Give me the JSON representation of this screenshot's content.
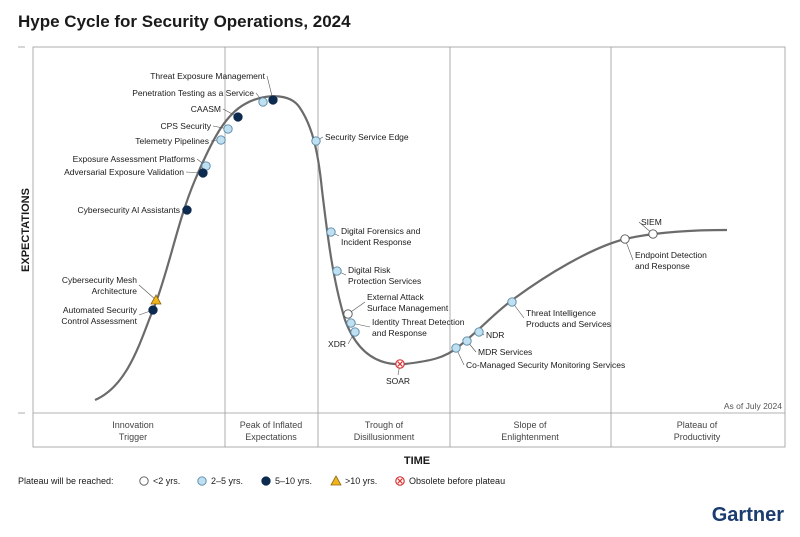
{
  "title": "Hype Cycle for Security Operations, 2024",
  "axes": {
    "y_label": "EXPECTATIONS",
    "x_label": "TIME"
  },
  "as_of": "As of July 2024",
  "phases": [
    {
      "line1": "Innovation",
      "line2": "Trigger"
    },
    {
      "line1": "Peak of Inflated",
      "line2": "Expectations"
    },
    {
      "line1": "Trough of",
      "line2": "Disillusionment"
    },
    {
      "line1": "Slope of",
      "line2": "Enlightenment"
    },
    {
      "line1": "Plateau of",
      "line2": "Productivity"
    }
  ],
  "legend": {
    "label": "Plateau will be reached:",
    "items": [
      {
        "key": "lt2",
        "text": "<2 yrs."
      },
      {
        "key": "2to5",
        "text": "2–5 yrs."
      },
      {
        "key": "5to10",
        "text": "5–10 yrs."
      },
      {
        "key": "gt10",
        "text": ">10 yrs."
      },
      {
        "key": "obsolete",
        "text": "Obsolete before plateau"
      }
    ]
  },
  "colors": {
    "lt2": "#ffffff",
    "2to5": "#bfe0f0",
    "5to10": "#0d2a4f",
    "gt10": "#f2b41c",
    "obsolete": "#d9383a",
    "curve": "#6b6b6b",
    "grid": "#9a9a9a"
  },
  "technologies": [
    {
      "name": "Threat Exposure Management",
      "lines": [
        "Threat Exposure Management"
      ],
      "category": "5to10"
    },
    {
      "name": "Penetration Testing as a Service",
      "lines": [
        "Penetration Testing as a Service"
      ],
      "category": "2to5"
    },
    {
      "name": "CAASM",
      "lines": [
        "CAASM"
      ],
      "category": "5to10"
    },
    {
      "name": "CPS Security",
      "lines": [
        "CPS Security"
      ],
      "category": "2to5"
    },
    {
      "name": "Telemetry Pipelines",
      "lines": [
        "Telemetry Pipelines"
      ],
      "category": "2to5"
    },
    {
      "name": "Exposure Assessment Platforms",
      "lines": [
        "Exposure Assessment Platforms"
      ],
      "category": "2to5"
    },
    {
      "name": "Adversarial Exposure Validation",
      "lines": [
        "Adversarial Exposure Validation"
      ],
      "category": "5to10"
    },
    {
      "name": "Cybersecurity AI Assistants",
      "lines": [
        "Cybersecurity AI Assistants"
      ],
      "category": "5to10"
    },
    {
      "name": "Cybersecurity Mesh Architecture",
      "lines": [
        "Cybersecurity Mesh",
        "Architecture"
      ],
      "category": "gt10"
    },
    {
      "name": "Automated Security Control Assessment",
      "lines": [
        "Automated Security",
        "Control Assessment"
      ],
      "category": "5to10"
    },
    {
      "name": "Security Service Edge",
      "lines": [
        "Security Service Edge"
      ],
      "category": "2to5"
    },
    {
      "name": "Digital Forensics and Incident Response",
      "lines": [
        "Digital Forensics and",
        "Incident Response"
      ],
      "category": "2to5"
    },
    {
      "name": "Digital Risk Protection Services",
      "lines": [
        "Digital Risk",
        "Protection Services"
      ],
      "category": "2to5"
    },
    {
      "name": "External Attack Surface Management",
      "lines": [
        "External Attack",
        "Surface Management"
      ],
      "category": "lt2"
    },
    {
      "name": "Identity Threat Detection and Response",
      "lines": [
        "Identity Threat Detection",
        "and Response"
      ],
      "category": "2to5"
    },
    {
      "name": "XDR",
      "lines": [
        "XDR"
      ],
      "category": "2to5"
    },
    {
      "name": "SOAR",
      "lines": [
        "SOAR"
      ],
      "category": "obsolete"
    },
    {
      "name": "Co-Managed Security Monitoring Services",
      "lines": [
        "Co-Managed Security Monitoring Services"
      ],
      "category": "2to5"
    },
    {
      "name": "MDR Services",
      "lines": [
        "MDR Services"
      ],
      "category": "2to5"
    },
    {
      "name": "NDR",
      "lines": [
        "NDR"
      ],
      "category": "2to5"
    },
    {
      "name": "Threat Intelligence Products and Services",
      "lines": [
        "Threat Intelligence",
        "Products and Services"
      ],
      "category": "2to5"
    },
    {
      "name": "Endpoint Detection and Response",
      "lines": [
        "Endpoint Detection",
        "and Response"
      ],
      "category": "lt2"
    },
    {
      "name": "SIEM",
      "lines": [
        "SIEM"
      ],
      "category": "lt2"
    }
  ],
  "brand": "Gartner"
}
